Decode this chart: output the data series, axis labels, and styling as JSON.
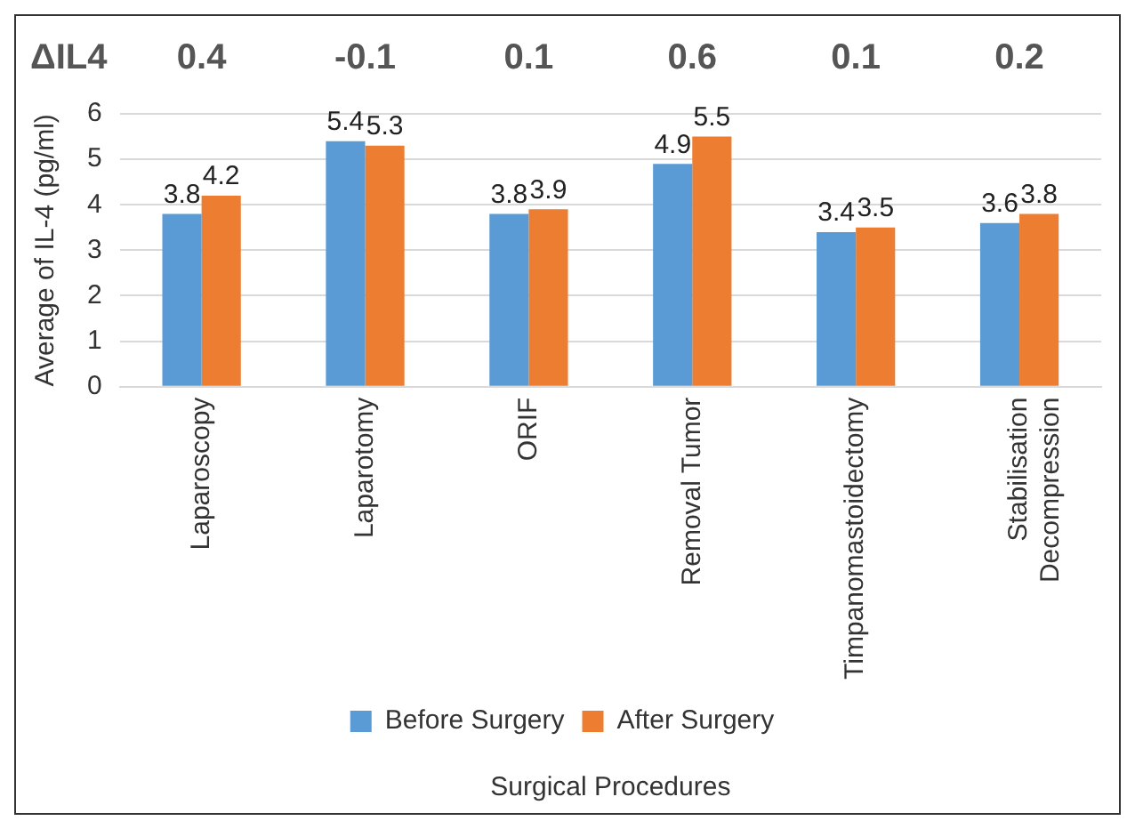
{
  "chart_data": {
    "type": "bar",
    "xlabel": "Surgical Procedures",
    "ylabel": "Average of IL-4 (pg/ml)",
    "categories": [
      "Laparoscopy",
      "Laparotomy",
      "ORIF",
      "Removal Tumor",
      "Timpanomastoidectomy",
      "Stabilisation Decompression"
    ],
    "series": [
      {
        "name": "Before Surgery",
        "color": "#5b9bd5",
        "values": [
          3.8,
          5.4,
          3.8,
          4.9,
          3.4,
          3.6
        ]
      },
      {
        "name": "After Surgery",
        "color": "#ed7d31",
        "values": [
          4.2,
          5.3,
          3.9,
          5.5,
          3.5,
          3.8
        ]
      }
    ],
    "ylim": [
      0,
      6
    ],
    "yticks": [
      0,
      1,
      2,
      3,
      4,
      5,
      6
    ],
    "grid": "y",
    "legend": "bottom",
    "data_labels": true,
    "annotations": [
      "ΔIL4",
      "0.4",
      "-0.1",
      "0.1",
      "0.6",
      "0.1",
      "0.2"
    ]
  }
}
